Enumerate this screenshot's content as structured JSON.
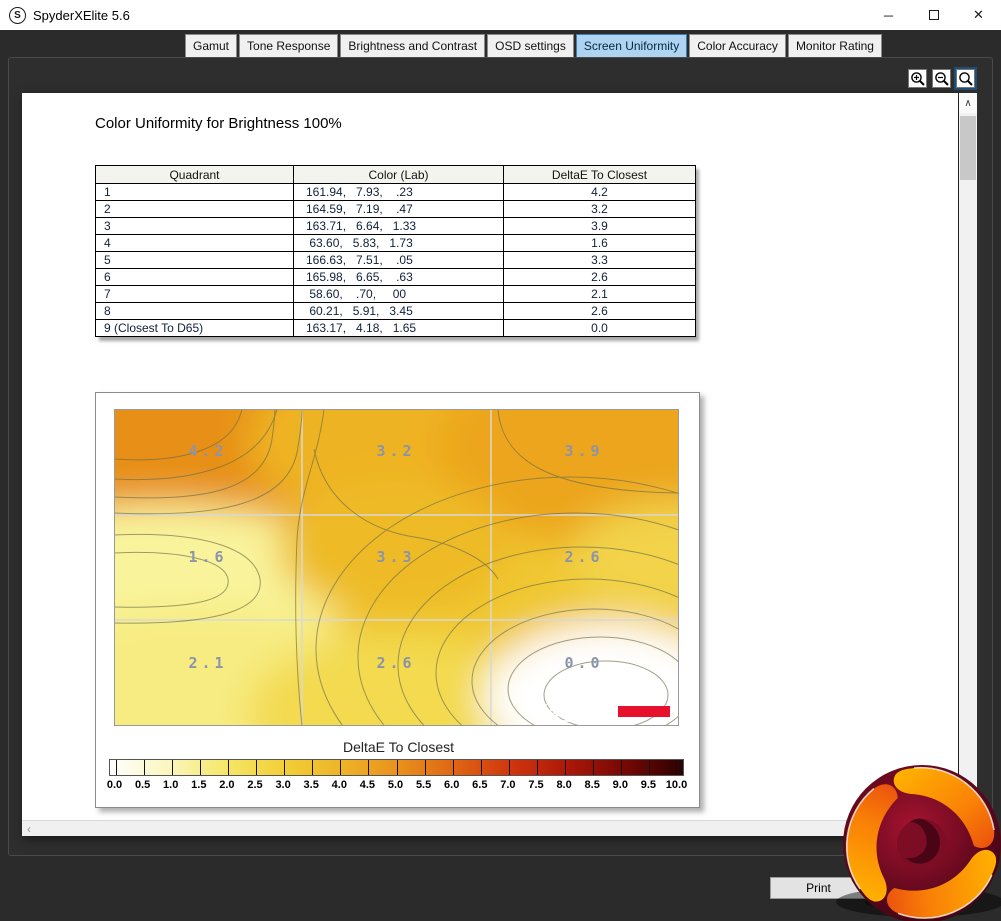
{
  "window": {
    "title": "SpyderXElite 5.6",
    "logo_letter": "S",
    "controls": {
      "minimize": "─",
      "close": "✕"
    }
  },
  "tabs": {
    "items": [
      {
        "label": "Gamut",
        "active": false
      },
      {
        "label": "Tone Response",
        "active": false
      },
      {
        "label": "Brightness and Contrast",
        "active": false
      },
      {
        "label": "OSD settings",
        "active": false
      },
      {
        "label": "Screen Uniformity",
        "active": true
      },
      {
        "label": "Color Accuracy",
        "active": false
      },
      {
        "label": "Monitor Rating",
        "active": false
      }
    ]
  },
  "toolbar": {
    "zoom_buttons": [
      {
        "name": "zoom-in-button",
        "icon": "magnifier-plus-icon",
        "active": false
      },
      {
        "name": "zoom-out-button",
        "icon": "magnifier-minus-icon",
        "active": false
      },
      {
        "name": "zoom-reset-button",
        "icon": "magnifier-icon",
        "active": true
      }
    ]
  },
  "icons": {
    "scroll_up": "∧",
    "scroll_down": "∨",
    "scroll_left": "‹",
    "scroll_right": "›"
  },
  "page": {
    "heading": "Color Uniformity for Brightness 100%",
    "table": {
      "columns": [
        "Quadrant",
        "Color (Lab)",
        "DeltaE To Closest"
      ],
      "rows": [
        {
          "quadrant": "1",
          "lab": "161.94,   7.93,    .23",
          "delta": "4.2"
        },
        {
          "quadrant": "2",
          "lab": "164.59,   7.19,    .47",
          "delta": "3.2"
        },
        {
          "quadrant": "3",
          "lab": "163.71,   6.64,   1.33",
          "delta": "3.9"
        },
        {
          "quadrant": "4",
          "lab": " 63.60,   5.83,   1.73",
          "delta": "1.6"
        },
        {
          "quadrant": "5",
          "lab": "166.63,   7.51,    .05",
          "delta": "3.3"
        },
        {
          "quadrant": "6",
          "lab": "165.98,   6.65,    .63",
          "delta": "2.6"
        },
        {
          "quadrant": "7",
          "lab": " 58.60,    .70,     00",
          "delta": "2.1"
        },
        {
          "quadrant": "8",
          "lab": " 60.21,   5.91,   3.45",
          "delta": "2.6"
        },
        {
          "quadrant": "9 (Closest To D65)",
          "lab": "163.17,   4.18,   1.65",
          "delta": "0.0"
        }
      ]
    },
    "print_label": "Print"
  },
  "chart_data": {
    "type": "heatmap",
    "title": "DeltaE To Closest",
    "rows": 3,
    "cols": 3,
    "grid_values": [
      [
        4.2,
        3.2,
        3.9
      ],
      [
        1.6,
        3.3,
        2.6
      ],
      [
        2.1,
        2.6,
        0.0
      ]
    ],
    "grid_lines": true,
    "watermark": "datacolor",
    "accent_red": "#e8112d",
    "colorbar": {
      "label": "DeltaE To Closest",
      "min": 0.0,
      "max": 10.0,
      "step": 0.5,
      "tick_labels": [
        "0.0",
        "0.5",
        "1.0",
        "1.5",
        "2.0",
        "2.5",
        "3.0",
        "3.5",
        "4.0",
        "4.5",
        "5.0",
        "5.5",
        "6.0",
        "6.5",
        "7.0",
        "7.5",
        "8.0",
        "8.5",
        "9.0",
        "9.5",
        "10.0"
      ],
      "gradient_colors": [
        "#ffffff",
        "#fbf6c0",
        "#f6e76a",
        "#f2d038",
        "#eeb528",
        "#e9921d",
        "#e06614",
        "#cf360d",
        "#ab1709",
        "#750805",
        "#2b0100"
      ]
    }
  }
}
